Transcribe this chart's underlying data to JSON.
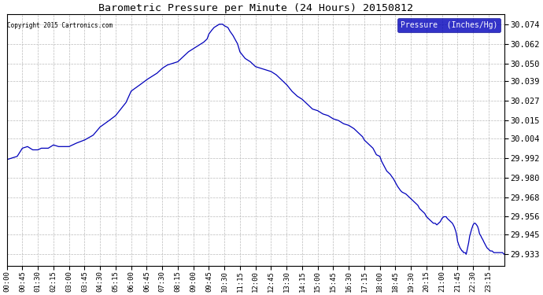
{
  "title": "Barometric Pressure per Minute (24 Hours) 20150812",
  "copyright": "Copyright 2015 Cartronics.com",
  "legend_label": "Pressure  (Inches/Hg)",
  "line_color": "#0000bb",
  "background_color": "#ffffff",
  "plot_bg_color": "#ffffff",
  "grid_color": "#bbbbbb",
  "yticks": [
    29.933,
    29.945,
    29.956,
    29.968,
    29.98,
    29.992,
    30.004,
    30.015,
    30.027,
    30.039,
    30.05,
    30.062,
    30.074
  ],
  "ylim": [
    29.926,
    30.08
  ],
  "xtick_labels": [
    "00:00",
    "00:45",
    "01:30",
    "02:15",
    "03:00",
    "03:45",
    "04:30",
    "05:15",
    "06:00",
    "06:45",
    "07:30",
    "08:15",
    "09:00",
    "09:45",
    "10:30",
    "11:15",
    "12:00",
    "12:45",
    "13:30",
    "14:15",
    "15:00",
    "15:45",
    "16:30",
    "17:15",
    "18:00",
    "18:45",
    "19:30",
    "20:15",
    "21:00",
    "21:45",
    "22:30",
    "23:15"
  ],
  "waypoints": [
    [
      0,
      29.991
    ],
    [
      30,
      29.993
    ],
    [
      45,
      29.998
    ],
    [
      60,
      29.999
    ],
    [
      75,
      29.997
    ],
    [
      90,
      29.997
    ],
    [
      100,
      29.998
    ],
    [
      120,
      29.998
    ],
    [
      135,
      30.0
    ],
    [
      150,
      29.999
    ],
    [
      165,
      29.999
    ],
    [
      180,
      29.999
    ],
    [
      200,
      30.001
    ],
    [
      225,
      30.003
    ],
    [
      250,
      30.006
    ],
    [
      270,
      30.011
    ],
    [
      290,
      30.014
    ],
    [
      315,
      30.018
    ],
    [
      330,
      30.022
    ],
    [
      345,
      30.026
    ],
    [
      360,
      30.033
    ],
    [
      380,
      30.036
    ],
    [
      405,
      30.04
    ],
    [
      420,
      30.042
    ],
    [
      435,
      30.044
    ],
    [
      450,
      30.047
    ],
    [
      465,
      30.049
    ],
    [
      480,
      30.05
    ],
    [
      495,
      30.051
    ],
    [
      510,
      30.054
    ],
    [
      525,
      30.057
    ],
    [
      540,
      30.059
    ],
    [
      555,
      30.061
    ],
    [
      570,
      30.063
    ],
    [
      580,
      30.065
    ],
    [
      585,
      30.068
    ],
    [
      592,
      30.07
    ],
    [
      600,
      30.072
    ],
    [
      608,
      30.073
    ],
    [
      615,
      30.074
    ],
    [
      620,
      30.074
    ],
    [
      625,
      30.074
    ],
    [
      630,
      30.073
    ],
    [
      640,
      30.072
    ],
    [
      645,
      30.07
    ],
    [
      655,
      30.067
    ],
    [
      660,
      30.065
    ],
    [
      668,
      30.062
    ],
    [
      675,
      30.057
    ],
    [
      690,
      30.053
    ],
    [
      705,
      30.051
    ],
    [
      720,
      30.048
    ],
    [
      735,
      30.047
    ],
    [
      750,
      30.046
    ],
    [
      765,
      30.045
    ],
    [
      780,
      30.043
    ],
    [
      795,
      30.04
    ],
    [
      810,
      30.037
    ],
    [
      825,
      30.033
    ],
    [
      840,
      30.03
    ],
    [
      855,
      30.028
    ],
    [
      870,
      30.025
    ],
    [
      885,
      30.022
    ],
    [
      900,
      30.021
    ],
    [
      915,
      30.019
    ],
    [
      930,
      30.018
    ],
    [
      945,
      30.016
    ],
    [
      960,
      30.015
    ],
    [
      975,
      30.013
    ],
    [
      990,
      30.012
    ],
    [
      1005,
      30.01
    ],
    [
      1020,
      30.007
    ],
    [
      1030,
      30.005
    ],
    [
      1035,
      30.003
    ],
    [
      1050,
      30.0
    ],
    [
      1060,
      29.998
    ],
    [
      1065,
      29.996
    ],
    [
      1070,
      29.994
    ],
    [
      1080,
      29.993
    ],
    [
      1085,
      29.99
    ],
    [
      1090,
      29.988
    ],
    [
      1095,
      29.986
    ],
    [
      1100,
      29.984
    ],
    [
      1110,
      29.982
    ],
    [
      1120,
      29.979
    ],
    [
      1125,
      29.977
    ],
    [
      1130,
      29.975
    ],
    [
      1140,
      29.972
    ],
    [
      1145,
      29.971
    ],
    [
      1155,
      29.97
    ],
    [
      1160,
      29.969
    ],
    [
      1165,
      29.968
    ],
    [
      1170,
      29.967
    ],
    [
      1175,
      29.966
    ],
    [
      1180,
      29.965
    ],
    [
      1185,
      29.964
    ],
    [
      1190,
      29.963
    ],
    [
      1195,
      29.961
    ],
    [
      1200,
      29.96
    ],
    [
      1205,
      29.959
    ],
    [
      1210,
      29.958
    ],
    [
      1215,
      29.956
    ],
    [
      1220,
      29.955
    ],
    [
      1225,
      29.954
    ],
    [
      1230,
      29.953
    ],
    [
      1235,
      29.952
    ],
    [
      1240,
      29.952
    ],
    [
      1245,
      29.951
    ],
    [
      1250,
      29.952
    ],
    [
      1255,
      29.953
    ],
    [
      1260,
      29.955
    ],
    [
      1265,
      29.956
    ],
    [
      1268,
      29.956
    ],
    [
      1272,
      29.956
    ],
    [
      1275,
      29.955
    ],
    [
      1280,
      29.954
    ],
    [
      1285,
      29.953
    ],
    [
      1290,
      29.952
    ],
    [
      1295,
      29.95
    ],
    [
      1300,
      29.947
    ],
    [
      1303,
      29.944
    ],
    [
      1305,
      29.941
    ],
    [
      1308,
      29.939
    ],
    [
      1312,
      29.937
    ],
    [
      1315,
      29.936
    ],
    [
      1318,
      29.935
    ],
    [
      1320,
      29.935
    ],
    [
      1322,
      29.934
    ],
    [
      1325,
      29.934
    ],
    [
      1327,
      29.934
    ],
    [
      1330,
      29.933
    ],
    [
      1333,
      29.936
    ],
    [
      1337,
      29.94
    ],
    [
      1340,
      29.944
    ],
    [
      1345,
      29.948
    ],
    [
      1350,
      29.951
    ],
    [
      1353,
      29.952
    ],
    [
      1356,
      29.952
    ],
    [
      1360,
      29.951
    ],
    [
      1363,
      29.95
    ],
    [
      1366,
      29.948
    ],
    [
      1368,
      29.946
    ],
    [
      1370,
      29.945
    ],
    [
      1373,
      29.944
    ],
    [
      1375,
      29.943
    ],
    [
      1378,
      29.942
    ],
    [
      1380,
      29.941
    ],
    [
      1385,
      29.939
    ],
    [
      1390,
      29.937
    ],
    [
      1395,
      29.936
    ],
    [
      1400,
      29.935
    ],
    [
      1405,
      29.935
    ],
    [
      1410,
      29.934
    ],
    [
      1420,
      29.934
    ],
    [
      1430,
      29.934
    ],
    [
      1435,
      29.934
    ],
    [
      1440,
      29.933
    ]
  ]
}
